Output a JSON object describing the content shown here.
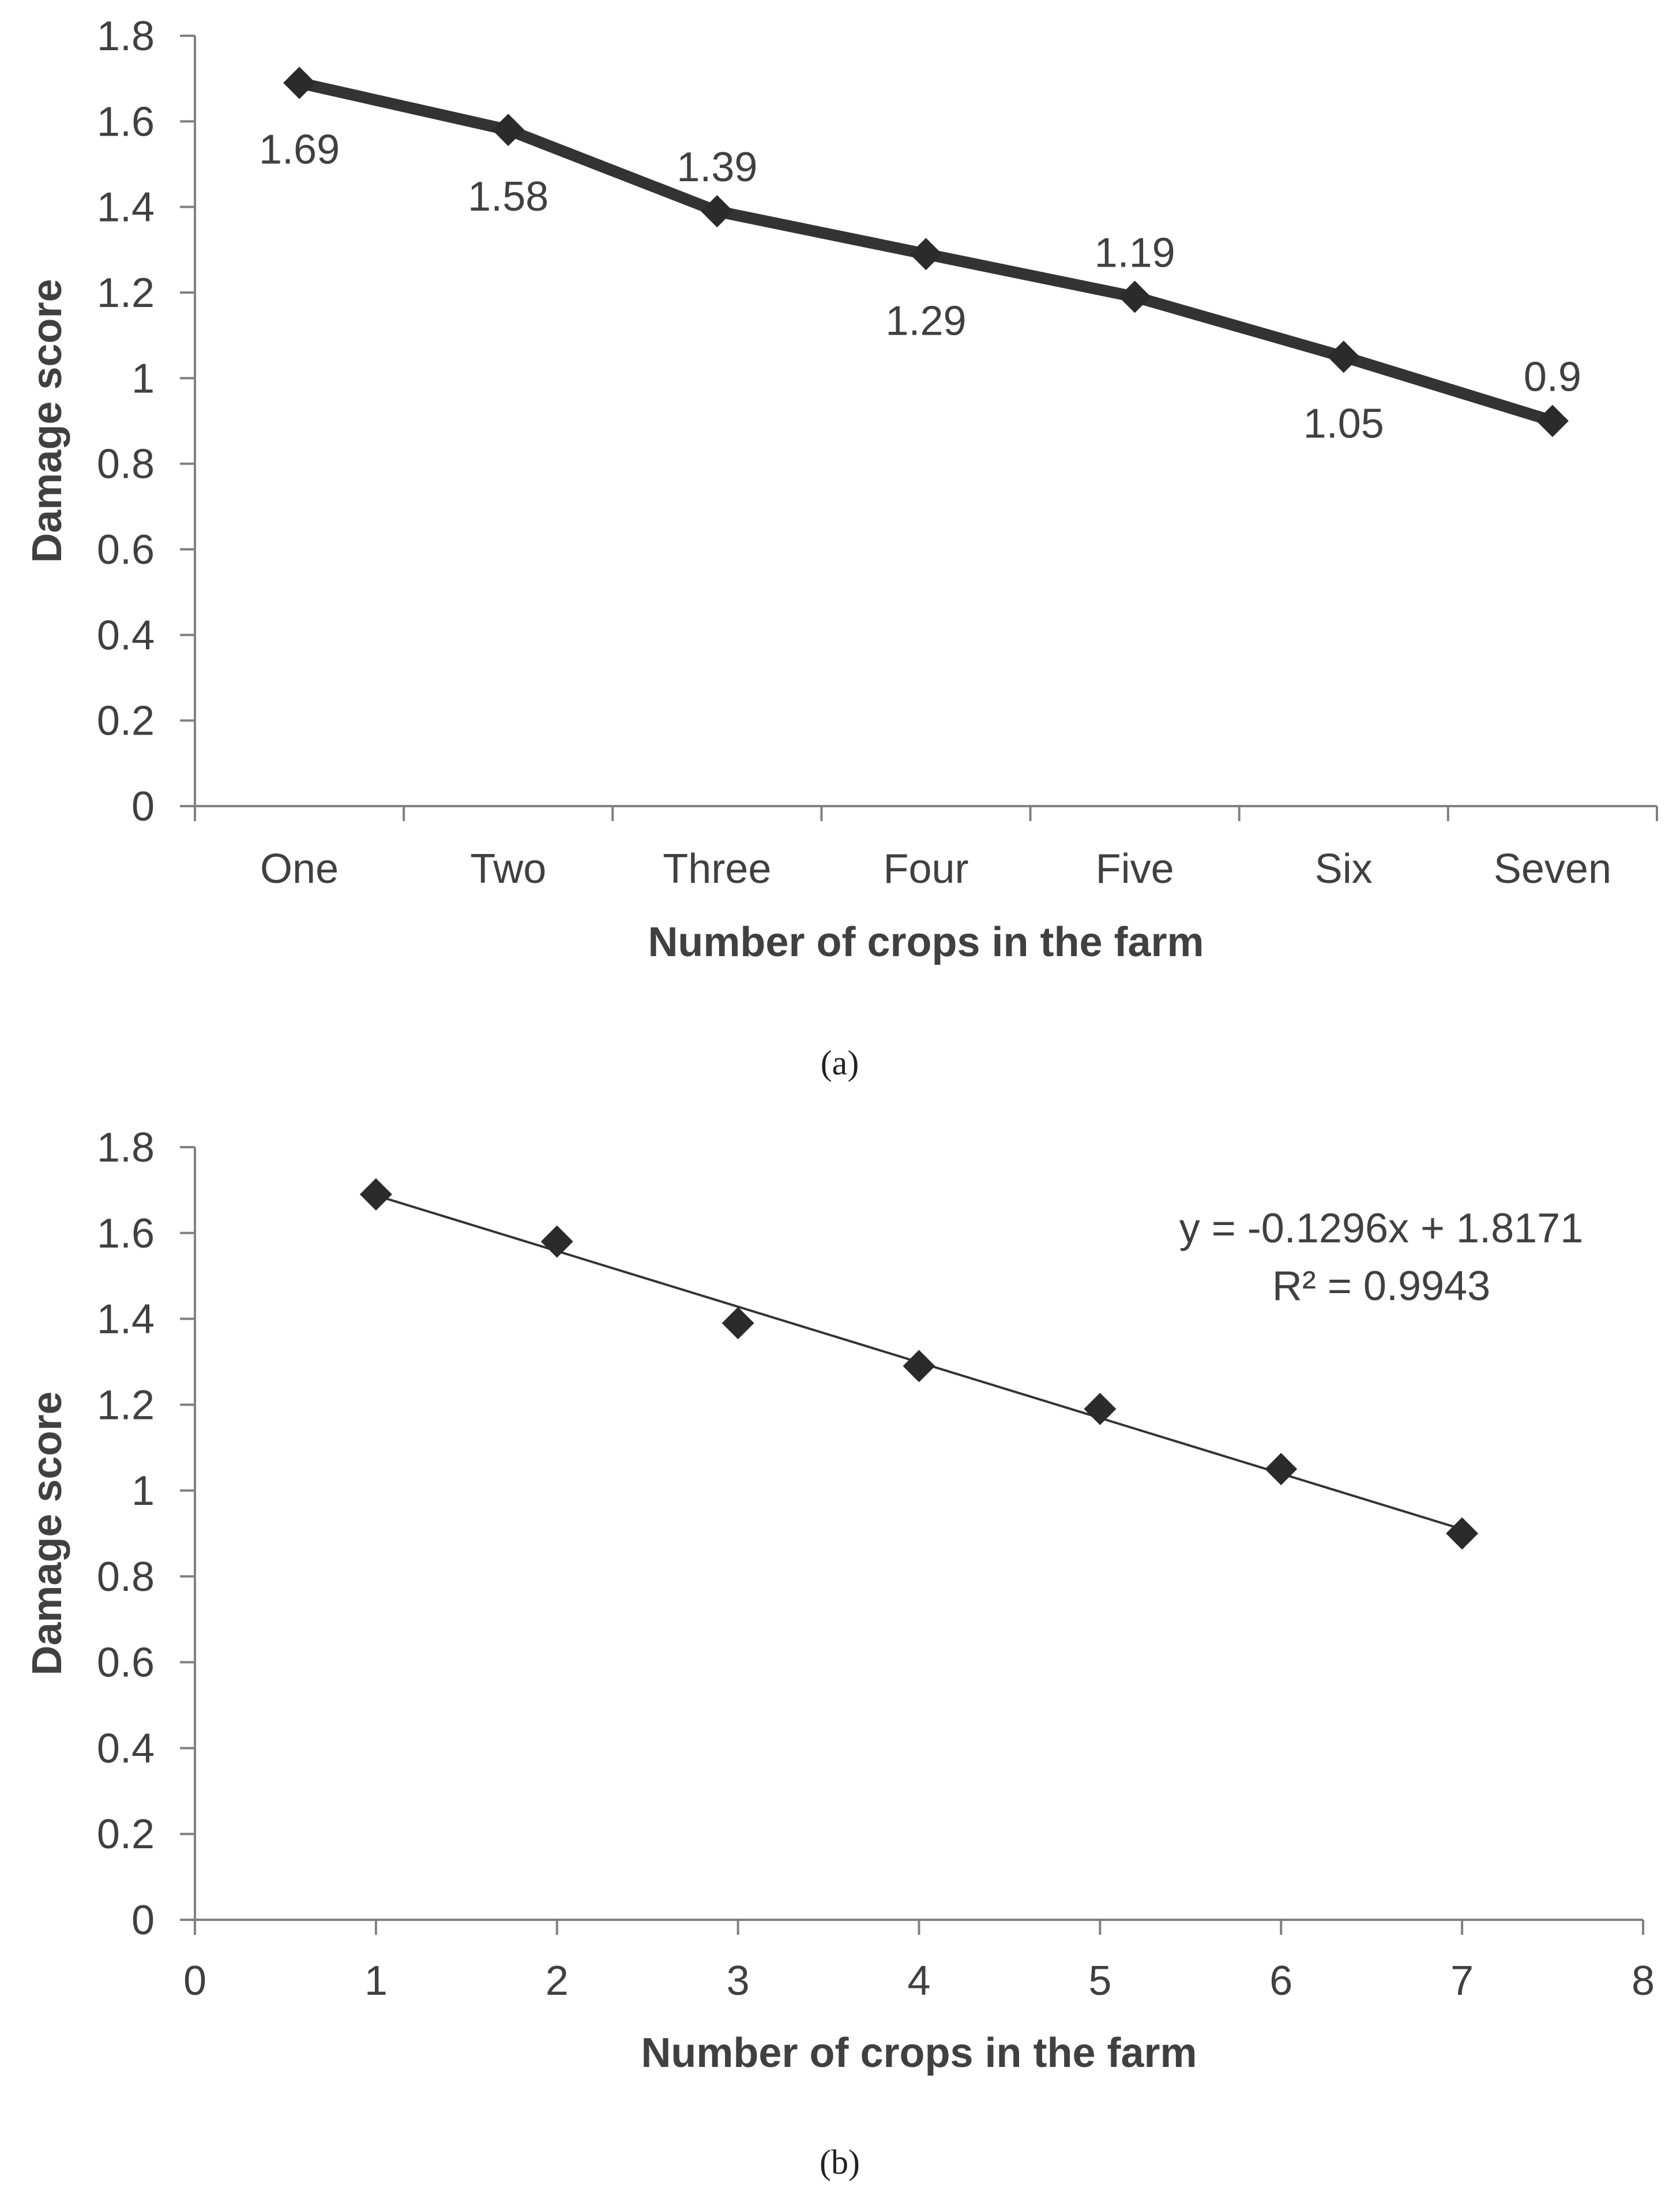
{
  "colors": {
    "axis": "#808080",
    "text": "#404040",
    "series": "#333333",
    "marker": "#2b2b2b"
  },
  "chart_data": [
    {
      "panel": "a",
      "caption": "(a)",
      "type": "line",
      "categories": [
        "One",
        "Two",
        "Three",
        "Four",
        "Five",
        "Six",
        "Seven"
      ],
      "values": [
        1.69,
        1.58,
        1.39,
        1.29,
        1.19,
        1.05,
        0.9
      ],
      "data_labels": [
        "1.69",
        "1.58",
        "1.39",
        "1.29",
        "1.19",
        "1.05",
        "0.9"
      ],
      "label_positions": [
        "below",
        "below",
        "above",
        "below",
        "above",
        "below",
        "above"
      ],
      "marker": "diamond",
      "xlabel": "Number of crops in the farm",
      "ylabel": "Damage score",
      "ylim": [
        0,
        1.8
      ],
      "yticks": [
        "0",
        "0.2",
        "0.4",
        "0.6",
        "0.8",
        "1",
        "1.2",
        "1.4",
        "1.6",
        "1.8"
      ],
      "grid": false
    },
    {
      "panel": "b",
      "caption": "(b)",
      "type": "scatter",
      "x": [
        1,
        2,
        3,
        4,
        5,
        6,
        7
      ],
      "y": [
        1.69,
        1.58,
        1.39,
        1.29,
        1.19,
        1.05,
        0.9
      ],
      "marker": "diamond",
      "trendline": {
        "slope": -0.1296,
        "intercept": 1.8171,
        "equation": "y = -0.1296x + 1.8171",
        "r2": "R² = 0.9943"
      },
      "xlabel": "Number of crops in the farm",
      "ylabel": "Damage score",
      "xlim": [
        0,
        8
      ],
      "ylim": [
        0,
        1.8
      ],
      "xticks": [
        "0",
        "1",
        "2",
        "3",
        "4",
        "5",
        "6",
        "7",
        "8"
      ],
      "yticks": [
        "0",
        "0.2",
        "0.4",
        "0.6",
        "0.8",
        "1",
        "1.2",
        "1.4",
        "1.6",
        "1.8"
      ],
      "grid": false
    }
  ]
}
